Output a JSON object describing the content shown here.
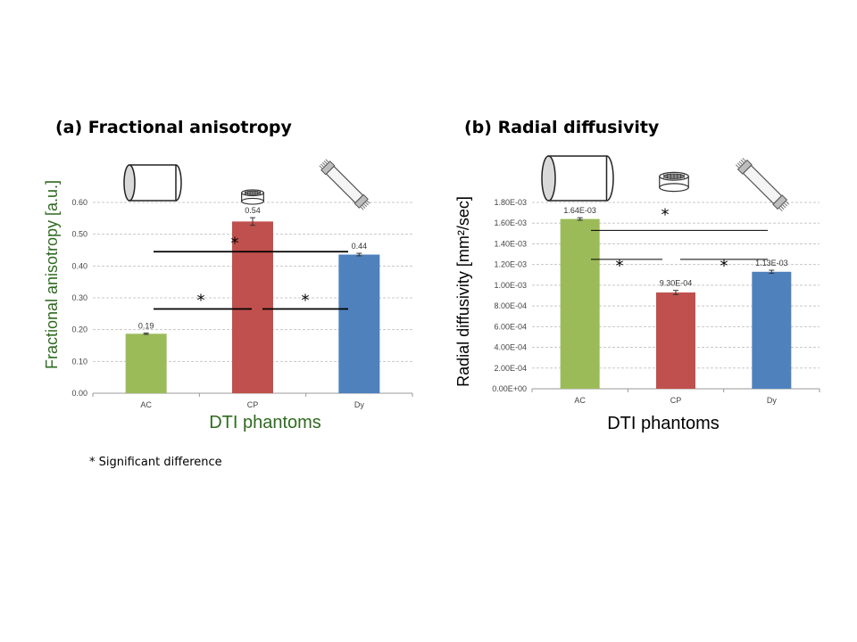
{
  "footnote": "* Significant difference",
  "colors": {
    "AC": "#9bbb59",
    "CP": "#c0504d",
    "Dy": "#4f81bd",
    "fa_axis_title": "#2e6b1f",
    "grid": "#c8c8c8"
  },
  "chart_data": [
    {
      "type": "bar",
      "title": "(a) Fractional anisotropy",
      "xlabel": "DTI phantoms",
      "ylabel": "Fractional anisotropy [a.u.]",
      "categories": [
        "AC",
        "CP",
        "Dy"
      ],
      "values": [
        0.187,
        0.54,
        0.436
      ],
      "errors": [
        0.002,
        0.012,
        0.004
      ],
      "data_labels": [
        "0.19",
        "0.54",
        "0.44"
      ],
      "ylim": [
        0,
        0.6
      ],
      "yticks": [
        0,
        0.1,
        0.2,
        0.3,
        0.4,
        0.5,
        0.6
      ],
      "ytick_labels": [
        "0.00",
        "0.10",
        "0.20",
        "0.30",
        "0.40",
        "0.50",
        "0.60"
      ],
      "grid": true,
      "icons": [
        "cylinder-icon",
        "coil-icon",
        "fiber-bundle-icon"
      ],
      "significance": [
        {
          "from": "AC",
          "to": "Dy",
          "level": 0.445,
          "label": "*"
        },
        {
          "from": "AC",
          "to": "CP",
          "level": 0.265,
          "label": "*"
        },
        {
          "from": "CP",
          "to": "Dy",
          "level": 0.265,
          "label": "*"
        }
      ]
    },
    {
      "type": "bar",
      "title": "(b) Radial diffusivity",
      "xlabel": "DTI phantoms",
      "ylabel": "Radial diffusivity [mm²/sec]",
      "categories": [
        "AC",
        "CP",
        "Dy"
      ],
      "values": [
        0.00164,
        0.00093,
        0.00113
      ],
      "errors": [
        1.2e-05,
        2e-05,
        1.5e-05
      ],
      "data_labels": [
        "1.64E-03",
        "9.30E-04",
        "1.13E-03"
      ],
      "ylim": [
        0,
        0.0018
      ],
      "yticks": [
        0,
        0.0002,
        0.0004,
        0.0006,
        0.0008,
        0.001,
        0.0012,
        0.0014,
        0.0016,
        0.0018
      ],
      "ytick_labels": [
        "0.00E+00",
        "2.00E-04",
        "4.00E-04",
        "6.00E-04",
        "8.00E-04",
        "1.00E-03",
        "1.20E-03",
        "1.40E-03",
        "1.60E-03",
        "1.80E-03"
      ],
      "grid": true,
      "icons": [
        "cylinder-icon",
        "coil-icon",
        "fiber-bundle-icon"
      ],
      "significance": [
        {
          "from": "AC",
          "to": "Dy",
          "level": 0.00153,
          "label": "*"
        },
        {
          "from": "AC",
          "to": "CP",
          "level": 0.00125,
          "label": "*"
        },
        {
          "from": "CP",
          "to": "Dy",
          "level": 0.00125,
          "label": "*"
        }
      ]
    }
  ]
}
